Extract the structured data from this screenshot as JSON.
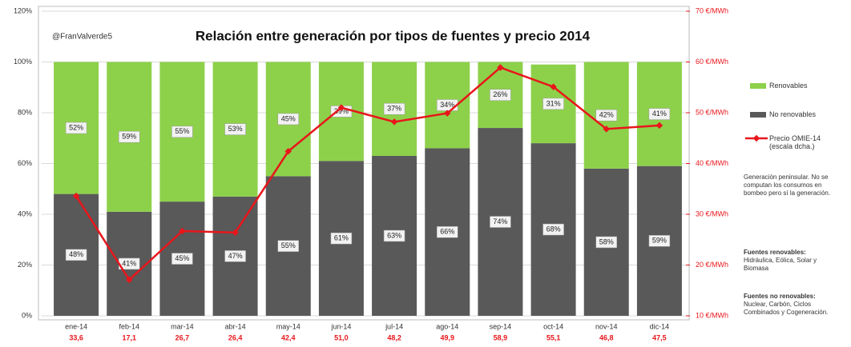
{
  "chart_data": {
    "type": "bar",
    "stacked": true,
    "title": "Relación entre generación por tipos de fuentes y precio 2014",
    "annotation": "@FranValverde5",
    "categories": [
      "ene-14",
      "feb-14",
      "mar-14",
      "abr-14",
      "may-14",
      "jun-14",
      "jul-14",
      "ago-14",
      "sep-14",
      "oct-14",
      "nov-14",
      "dic-14"
    ],
    "series": [
      {
        "name": "Renovables",
        "color": "#8dd14a",
        "values": [
          52,
          59,
          55,
          53,
          45,
          39,
          37,
          34,
          26,
          31,
          42,
          41
        ],
        "value_labels": [
          "52%",
          "59%",
          "55%",
          "53%",
          "45%",
          "39%",
          "37%",
          "34%",
          "26%",
          "31%",
          "42%",
          "41%"
        ]
      },
      {
        "name": "No renovables",
        "color": "#595959",
        "values": [
          48,
          41,
          45,
          47,
          55,
          61,
          63,
          66,
          74,
          68,
          58,
          59
        ],
        "value_labels": [
          "48%",
          "41%",
          "45%",
          "47%",
          "55%",
          "61%",
          "63%",
          "66%",
          "74%",
          "68%",
          "58%",
          "59%"
        ]
      },
      {
        "name": "Precio OMIE-14 (escala dcha.)",
        "type": "line",
        "axis": "y2",
        "color": "#e8161b",
        "values": [
          33.6,
          17.1,
          26.7,
          26.4,
          42.4,
          51.0,
          48.2,
          49.9,
          58.9,
          55.1,
          46.8,
          47.5
        ],
        "value_labels": [
          "33,6",
          "17,1",
          "26,7",
          "26,4",
          "42,4",
          "51,0",
          "48,2",
          "49,9",
          "58,9",
          "55,1",
          "46,8",
          "47,5"
        ]
      }
    ],
    "ylim": [
      0,
      120
    ],
    "yticks": [
      {
        "value": 0,
        "label": "0%"
      },
      {
        "value": 20,
        "label": "20%"
      },
      {
        "value": 40,
        "label": "40%"
      },
      {
        "value": 60,
        "label": "60%"
      },
      {
        "value": 80,
        "label": "80%"
      },
      {
        "value": 100,
        "label": "100%"
      },
      {
        "value": 120,
        "label": "120%"
      }
    ],
    "y2lim": [
      10,
      70
    ],
    "y2ticks": [
      {
        "value": 10,
        "label": "10 €/MWh"
      },
      {
        "value": 20,
        "label": "20 €/MWh"
      },
      {
        "value": 30,
        "label": "30 €/MWh"
      },
      {
        "value": 40,
        "label": "40 €/MWh"
      },
      {
        "value": 50,
        "label": "50 €/MWh"
      },
      {
        "value": 60,
        "label": "60 €/MWh"
      },
      {
        "value": 70,
        "label": "70 €/MWh"
      }
    ],
    "grid": true,
    "notes": [
      "Generación peninsular. No se computan los consumos en bombeo pero sí la generación.",
      "Fuentes renovables:",
      "Hidráulica, Eólica, Solar y Biomasa",
      "Fuentes no renovables:",
      "Nuclear, Carbón, Ciclos Combinados y Cogeneración."
    ]
  }
}
